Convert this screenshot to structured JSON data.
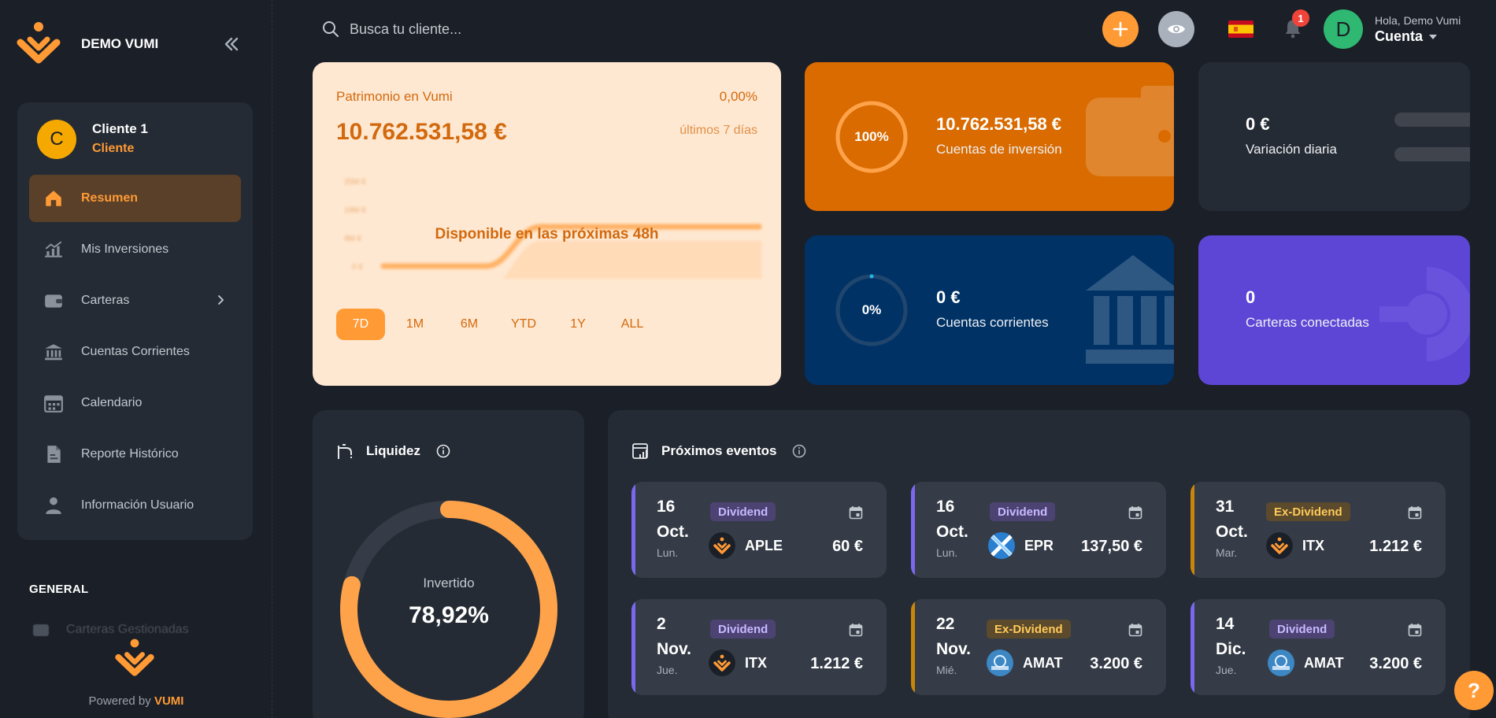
{
  "brand": {
    "name": "DEMO VUMI"
  },
  "client": {
    "initial": "C",
    "name": "Cliente 1",
    "role": "Cliente"
  },
  "nav": [
    {
      "label": "Resumen",
      "icon": "home-icon",
      "active": true
    },
    {
      "label": "Mis Inversiones",
      "icon": "chart-growth-icon"
    },
    {
      "label": "Carteras",
      "icon": "wallet-icon",
      "has_submenu": true
    },
    {
      "label": "Cuentas Corrientes",
      "icon": "bank-icon"
    },
    {
      "label": "Calendario",
      "icon": "calendar-icon"
    },
    {
      "label": "Reporte Histórico",
      "icon": "document-icon"
    },
    {
      "label": "Información Usuario",
      "icon": "user-icon"
    }
  ],
  "general": {
    "label": "GENERAL",
    "managed_label": "Carteras Gestionadas"
  },
  "powered": {
    "prefix": "Powered by",
    "brand": "VUMI"
  },
  "topbar": {
    "search_placeholder": "Busca tu cliente...",
    "notifications_count": "1",
    "user_initial": "D",
    "greeting": "Hola, Demo Vumi",
    "account_label": "Cuenta"
  },
  "patrimonio": {
    "title": "Patrimonio en Vumi",
    "change": "0,00%",
    "value": "10.762.531,58 €",
    "range_label": "últimos 7 días",
    "placeholder": "Disponible en las próximas 48h",
    "ranges": [
      "7D",
      "1M",
      "6M",
      "YTD",
      "1Y",
      "ALL"
    ],
    "active_range": "7D"
  },
  "stats": {
    "inversion": {
      "percent_label": "100%",
      "percent": 1.0,
      "value": "10.762.531,58 €",
      "label": "Cuentas de inversión"
    },
    "variacion": {
      "value": "0 €",
      "label": "Variación diaria"
    },
    "corrientes": {
      "percent_label": "0%",
      "percent": 0.0,
      "value": "0 €",
      "label": "Cuentas corrientes"
    },
    "carteras": {
      "value": "0",
      "label": "Carteras conectadas"
    }
  },
  "liquidez": {
    "title": "Liquidez",
    "center_label": "Invertido",
    "center_value": "78,92%",
    "invested_fraction": 0.7892
  },
  "events": {
    "title": "Próximos eventos",
    "items": [
      {
        "day": "16",
        "month": "Oct.",
        "weekday": "Lun.",
        "type": "Dividend",
        "ticker": "APLE",
        "amount": "60 €",
        "logo": "vumi"
      },
      {
        "day": "16",
        "month": "Oct.",
        "weekday": "Lun.",
        "type": "Dividend",
        "ticker": "EPR",
        "amount": "137,50 €",
        "logo": "epr"
      },
      {
        "day": "31",
        "month": "Oct.",
        "weekday": "Mar.",
        "type": "Ex-Dividend",
        "ticker": "ITX",
        "amount": "1.212 €",
        "logo": "vumi"
      },
      {
        "day": "2",
        "month": "Nov.",
        "weekday": "Jue.",
        "type": "Dividend",
        "ticker": "ITX",
        "amount": "1.212 €",
        "logo": "vumi"
      },
      {
        "day": "22",
        "month": "Nov.",
        "weekday": "Mié.",
        "type": "Ex-Dividend",
        "ticker": "AMAT",
        "amount": "3.200 €",
        "logo": "amat"
      },
      {
        "day": "14",
        "month": "Dic.",
        "weekday": "Jue.",
        "type": "Dividend",
        "ticker": "AMAT",
        "amount": "3.200 €",
        "logo": "amat"
      }
    ]
  },
  "help": {
    "label": "?"
  },
  "colors": {
    "accent": "#ff9a35",
    "dividend": "#7b68ee",
    "exdividend": "#c9860a"
  }
}
